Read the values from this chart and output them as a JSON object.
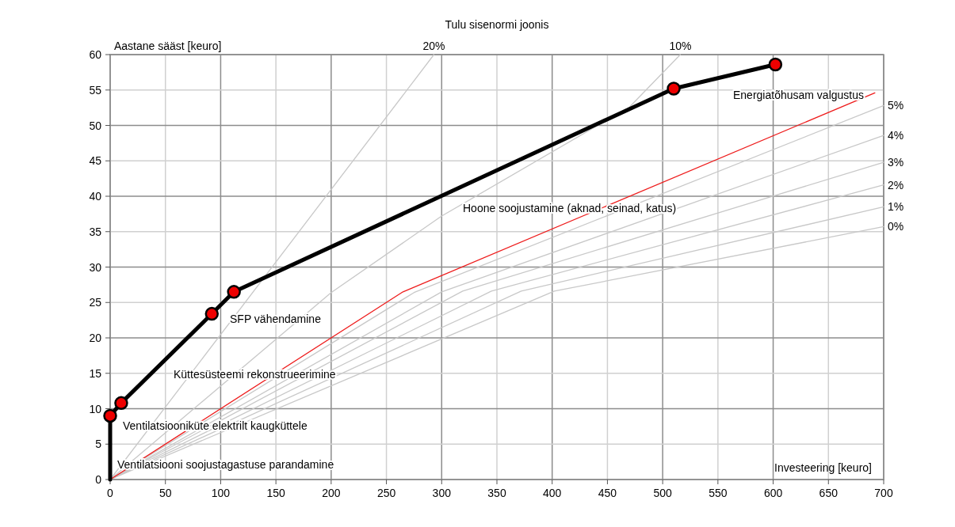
{
  "chart_data": {
    "type": "line",
    "title": "Tulu sisenormi joonis",
    "xlabel": "Investeering [keuro]",
    "ylabel": "Aastane sääst [keuro]",
    "xlim": [
      0,
      700
    ],
    "xticks": [
      0,
      50,
      100,
      150,
      200,
      250,
      300,
      350,
      400,
      450,
      500,
      550,
      600,
      650,
      700
    ],
    "ylim": [
      0,
      60
    ],
    "yticks": [
      0,
      5,
      10,
      15,
      20,
      25,
      30,
      35,
      40,
      45,
      50,
      55,
      60
    ],
    "grid": true,
    "line_style": "solid",
    "series": [
      {
        "name": "20%",
        "color": "#c8c8c8",
        "marker": "none",
        "x": [
          0,
          293
        ],
        "values": [
          0,
          60
        ]
      },
      {
        "name": "10%",
        "color": "#c8c8c8",
        "marker": "none",
        "x": [
          0,
          200,
          300,
          470,
          516
        ],
        "values": [
          0,
          26.4,
          37.2,
          52.6,
          60
        ]
      },
      {
        "name": "5%",
        "color": "#c8c8c8",
        "marker": "none",
        "x": [
          0,
          275,
          700
        ],
        "values": [
          0,
          26.4,
          52.8
        ]
      },
      {
        "name": "4%",
        "color": "#c8c8c8",
        "marker": "none",
        "x": [
          0,
          300,
          700
        ],
        "values": [
          0,
          26.5,
          48.6
        ]
      },
      {
        "name": "3%",
        "color": "#c8c8c8",
        "marker": "none",
        "x": [
          0,
          319,
          700
        ],
        "values": [
          0,
          26.6,
          44.8
        ]
      },
      {
        "name": "2%",
        "color": "#c8c8c8",
        "marker": "none",
        "x": [
          0,
          345,
          700
        ],
        "values": [
          0,
          26.6,
          41.6
        ]
      },
      {
        "name": "1%",
        "color": "#c8c8c8",
        "marker": "none",
        "x": [
          0,
          372,
          700
        ],
        "values": [
          0,
          26.6,
          38.5
        ]
      },
      {
        "name": "0%",
        "color": "#c8c8c8",
        "marker": "none",
        "x": [
          0,
          402,
          700
        ],
        "values": [
          0,
          26.6,
          35.7
        ]
      },
      {
        "color": "#ee1c1c",
        "marker": "none",
        "x": [
          0,
          265,
          692
        ],
        "values": [
          0,
          26.5,
          54.6
        ]
      },
      {
        "color": "#000000",
        "marker": "circle",
        "x": [
          0,
          0,
          10,
          92,
          112,
          510,
          602
        ],
        "values": [
          0,
          9,
          10.8,
          23.4,
          26.5,
          55.2,
          58.6
        ]
      }
    ],
    "annotations": [
      "Ventilatsiooni soojustagastuse parandamine",
      "Ventilatsiooniküte elektrilt kaugküttele",
      "Küttesüsteemi rekonstrueerimine",
      "SFP vähendamine",
      "Hoone soojustamine (aknad, seinad, katus)",
      "Energiatõhusam valgustus"
    ]
  }
}
